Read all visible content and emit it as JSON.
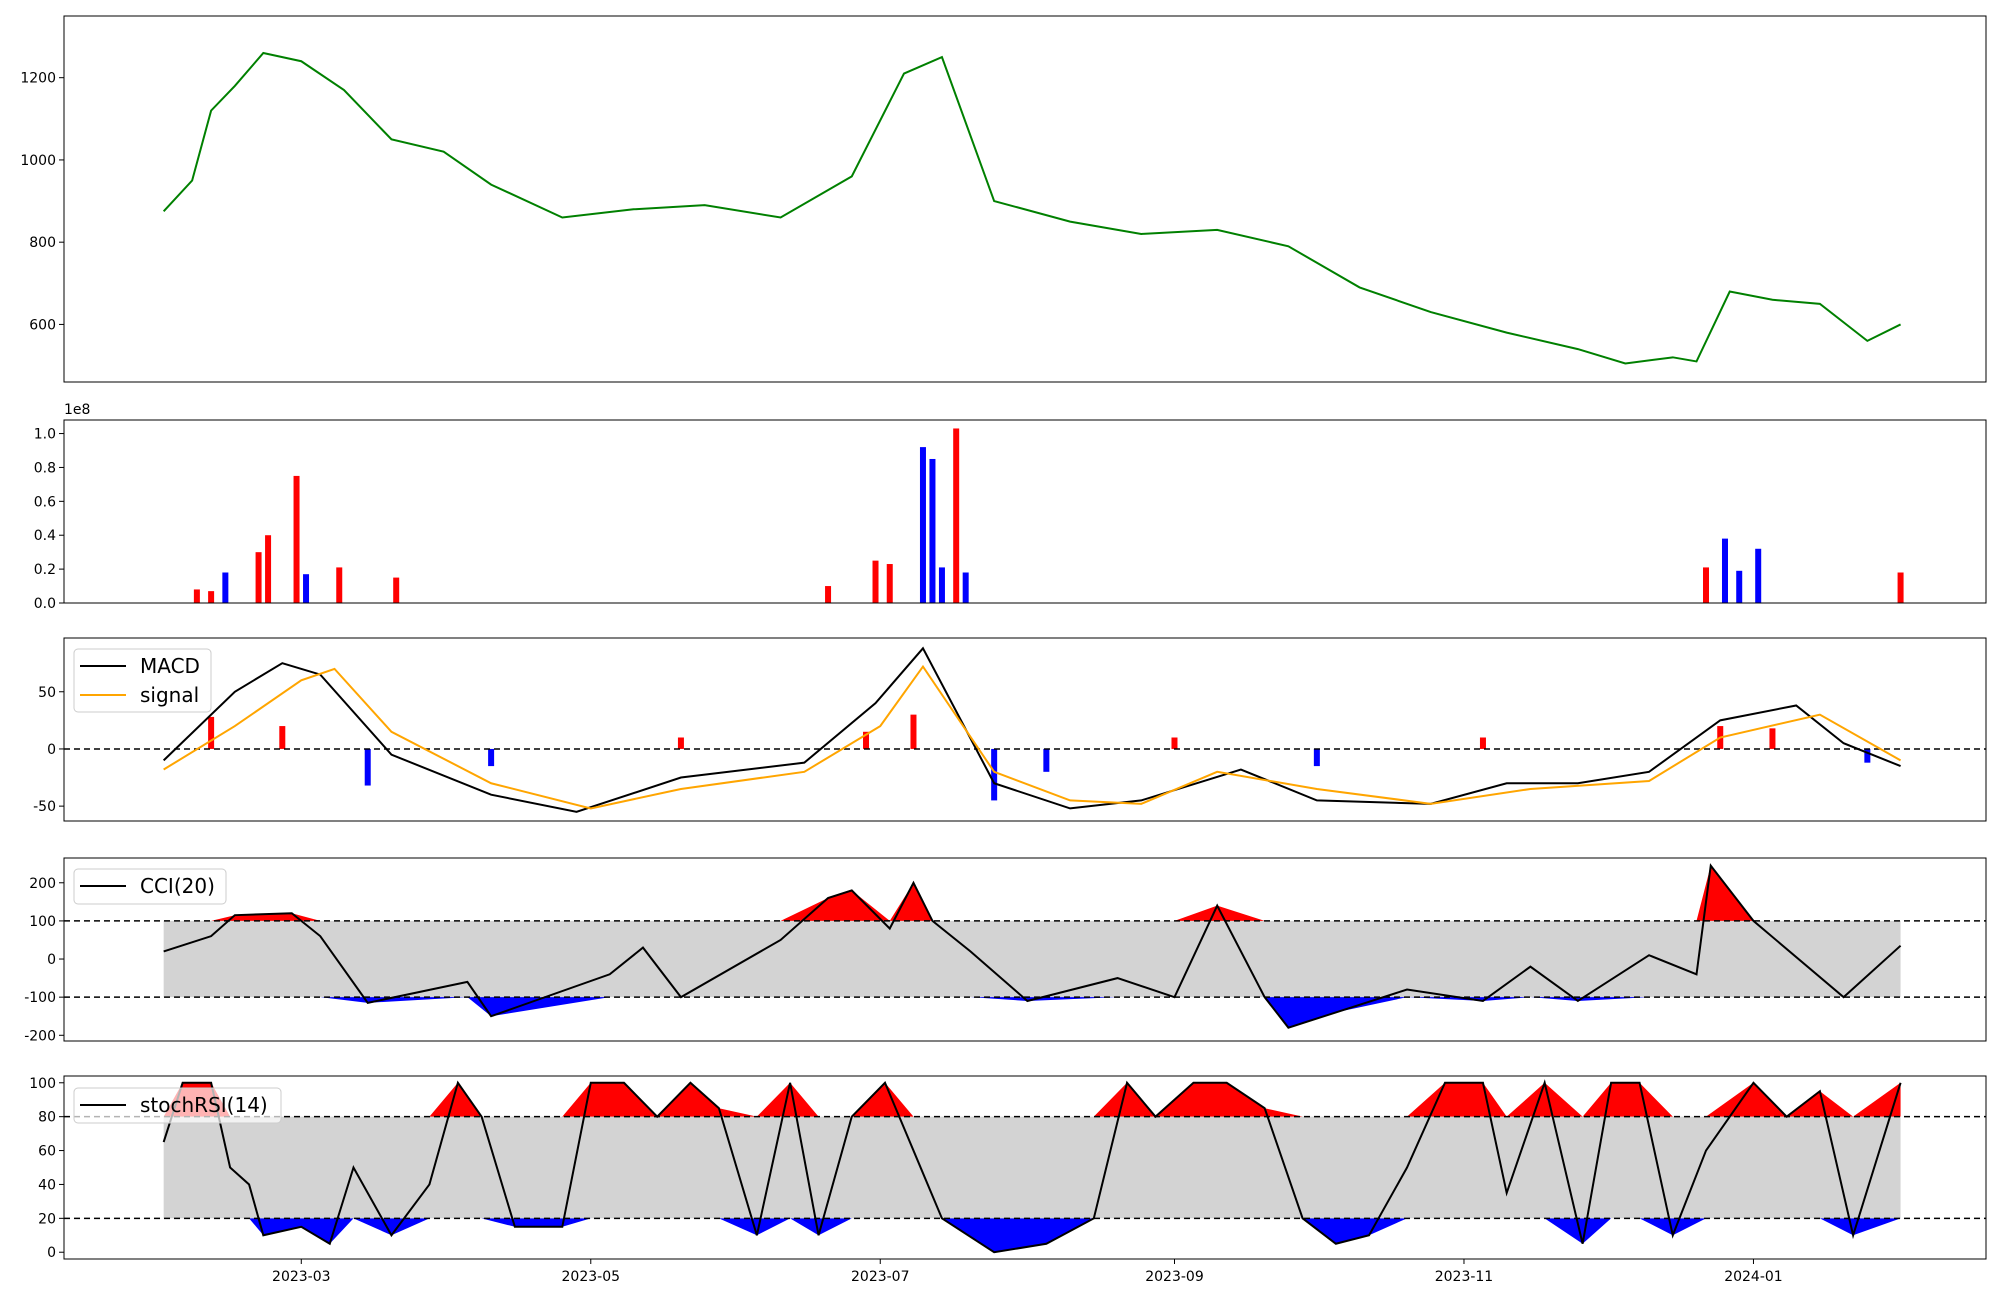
{
  "x_ticks": [
    "2023-03",
    "2023-05",
    "2023-07",
    "2023-09",
    "2023-11",
    "2024-01"
  ],
  "colors": {
    "price": "#008000",
    "up": "#ff0000",
    "down": "#0000ff",
    "macd": "#000000",
    "signal": "#ffa500",
    "band": "#d3d3d3",
    "axes": "#000000"
  },
  "chart_data": [
    {
      "type": "line",
      "title": "",
      "ylabel": "",
      "ylim": [
        460,
        1350
      ],
      "yticks": [
        "600",
        "800",
        "1000",
        "1200"
      ],
      "series": [
        {
          "x": [
            "2023-01-31",
            "2023-02-06",
            "2023-02-10",
            "2023-02-15",
            "2023-02-21",
            "2023-03-01",
            "2023-03-10",
            "2023-03-20",
            "2023-03-31",
            "2023-04-10",
            "2023-04-25",
            "2023-05-10",
            "2023-05-25",
            "2023-06-10",
            "2023-06-25",
            "2023-07-06",
            "2023-07-14",
            "2023-07-25",
            "2023-08-10",
            "2023-08-25",
            "2023-09-10",
            "2023-09-25",
            "2023-10-10",
            "2023-10-25",
            "2023-11-10",
            "2023-11-25",
            "2023-12-05",
            "2023-12-15",
            "2023-12-20",
            "2023-12-27",
            "2024-01-05",
            "2024-01-15",
            "2024-01-25",
            "2024-02-01"
          ],
          "values": [
            875,
            950,
            1120,
            1180,
            1260,
            1240,
            1170,
            1050,
            1020,
            940,
            860,
            880,
            890,
            860,
            960,
            1210,
            1250,
            900,
            850,
            820,
            830,
            790,
            690,
            630,
            580,
            540,
            505,
            520,
            510,
            680,
            660,
            650,
            560,
            600
          ]
        }
      ]
    },
    {
      "type": "bar",
      "title": "",
      "ylabel": "",
      "ylim": [
        0,
        1.08
      ],
      "yticks": [
        "0.0",
        "0.2",
        "0.4",
        "0.6",
        "0.8",
        "1.0"
      ],
      "scale_label": "1e8",
      "bars": [
        {
          "x": "2023-02-07",
          "value": 0.08,
          "dir": "up"
        },
        {
          "x": "2023-02-10",
          "value": 0.07,
          "dir": "up"
        },
        {
          "x": "2023-02-13",
          "value": 0.18,
          "dir": "down"
        },
        {
          "x": "2023-02-20",
          "value": 0.3,
          "dir": "up"
        },
        {
          "x": "2023-02-22",
          "value": 0.4,
          "dir": "up"
        },
        {
          "x": "2023-02-28",
          "value": 0.75,
          "dir": "up"
        },
        {
          "x": "2023-03-02",
          "value": 0.17,
          "dir": "down"
        },
        {
          "x": "2023-03-09",
          "value": 0.21,
          "dir": "up"
        },
        {
          "x": "2023-03-21",
          "value": 0.15,
          "dir": "up"
        },
        {
          "x": "2023-06-20",
          "value": 0.1,
          "dir": "up"
        },
        {
          "x": "2023-06-30",
          "value": 0.25,
          "dir": "up"
        },
        {
          "x": "2023-07-03",
          "value": 0.23,
          "dir": "up"
        },
        {
          "x": "2023-07-10",
          "value": 0.92,
          "dir": "down"
        },
        {
          "x": "2023-07-12",
          "value": 0.85,
          "dir": "down"
        },
        {
          "x": "2023-07-14",
          "value": 0.21,
          "dir": "down"
        },
        {
          "x": "2023-07-17",
          "value": 1.03,
          "dir": "up"
        },
        {
          "x": "2023-07-19",
          "value": 0.18,
          "dir": "down"
        },
        {
          "x": "2023-12-22",
          "value": 0.21,
          "dir": "up"
        },
        {
          "x": "2023-12-26",
          "value": 0.38,
          "dir": "down"
        },
        {
          "x": "2023-12-29",
          "value": 0.19,
          "dir": "down"
        },
        {
          "x": "2024-01-02",
          "value": 0.32,
          "dir": "down"
        },
        {
          "x": "2024-02-01",
          "value": 0.18,
          "dir": "up"
        }
      ]
    },
    {
      "type": "line",
      "title": "",
      "ylim": [
        -63,
        97
      ],
      "yticks": [
        "-50",
        "0",
        "50"
      ],
      "zero_line": 0,
      "legend": [
        "MACD",
        "signal"
      ],
      "series": [
        {
          "name": "MACD",
          "x": [
            "2023-01-31",
            "2023-02-15",
            "2023-02-25",
            "2023-03-05",
            "2023-03-20",
            "2023-04-10",
            "2023-04-28",
            "2023-05-20",
            "2023-06-15",
            "2023-06-30",
            "2023-07-10",
            "2023-07-25",
            "2023-08-10",
            "2023-08-25",
            "2023-09-15",
            "2023-10-01",
            "2023-10-25",
            "2023-11-10",
            "2023-11-25",
            "2023-12-10",
            "2023-12-25",
            "2024-01-10",
            "2024-01-20",
            "2024-02-01"
          ],
          "values": [
            -10,
            50,
            75,
            65,
            -5,
            -40,
            -55,
            -25,
            -12,
            40,
            88,
            -30,
            -52,
            -45,
            -18,
            -45,
            -48,
            -30,
            -30,
            -20,
            25,
            38,
            5,
            -15
          ]
        },
        {
          "name": "signal",
          "x": [
            "2023-01-31",
            "2023-02-15",
            "2023-03-01",
            "2023-03-08",
            "2023-03-20",
            "2023-04-10",
            "2023-05-01",
            "2023-05-20",
            "2023-06-15",
            "2023-07-01",
            "2023-07-10",
            "2023-07-25",
            "2023-08-10",
            "2023-08-25",
            "2023-09-10",
            "2023-10-01",
            "2023-10-25",
            "2023-11-15",
            "2023-12-10",
            "2023-12-25",
            "2024-01-15",
            "2024-02-01"
          ],
          "values": [
            -18,
            20,
            60,
            70,
            15,
            -30,
            -52,
            -35,
            -20,
            20,
            72,
            -20,
            -45,
            -48,
            -20,
            -35,
            -48,
            -35,
            -28,
            10,
            30,
            -10
          ]
        }
      ],
      "histogram": [
        {
          "x": "2023-02-10",
          "value": 28
        },
        {
          "x": "2023-02-25",
          "value": 20
        },
        {
          "x": "2023-03-15",
          "value": -32
        },
        {
          "x": "2023-04-10",
          "value": -15
        },
        {
          "x": "2023-05-20",
          "value": 10
        },
        {
          "x": "2023-06-28",
          "value": 15
        },
        {
          "x": "2023-07-08",
          "value": 30
        },
        {
          "x": "2023-07-25",
          "value": -45
        },
        {
          "x": "2023-08-05",
          "value": -20
        },
        {
          "x": "2023-09-01",
          "value": 10
        },
        {
          "x": "2023-10-01",
          "value": -15
        },
        {
          "x": "2023-11-05",
          "value": 10
        },
        {
          "x": "2023-12-25",
          "value": 20
        },
        {
          "x": "2024-01-05",
          "value": 18
        },
        {
          "x": "2024-01-25",
          "value": -12
        }
      ]
    },
    {
      "type": "line",
      "title": "",
      "ylim": [
        -215,
        265
      ],
      "yticks": [
        "-200",
        "-100",
        "0",
        "100",
        "200"
      ],
      "thresholds": [
        -100,
        100
      ],
      "legend": [
        "CCI(20)"
      ],
      "series": [
        {
          "name": "CCI(20)",
          "x": [
            "2023-01-31",
            "2023-02-10",
            "2023-02-15",
            "2023-02-27",
            "2023-03-05",
            "2023-03-15",
            "2023-04-05",
            "2023-04-10",
            "2023-05-05",
            "2023-05-12",
            "2023-05-20",
            "2023-06-10",
            "2023-06-20",
            "2023-06-25",
            "2023-07-03",
            "2023-07-08",
            "2023-07-12",
            "2023-07-20",
            "2023-08-01",
            "2023-08-20",
            "2023-09-01",
            "2023-09-10",
            "2023-09-20",
            "2023-09-25",
            "2023-10-05",
            "2023-10-20",
            "2023-11-05",
            "2023-11-15",
            "2023-11-25",
            "2023-12-10",
            "2023-12-20",
            "2023-12-23",
            "2024-01-01",
            "2024-01-20",
            "2024-02-01"
          ],
          "values": [
            20,
            60,
            115,
            120,
            60,
            -115,
            -60,
            -150,
            -40,
            30,
            -100,
            50,
            160,
            180,
            80,
            200,
            100,
            20,
            -110,
            -50,
            -100,
            140,
            -100,
            -180,
            -140,
            -80,
            -110,
            -20,
            -110,
            10,
            -40,
            245,
            100,
            -100,
            35
          ]
        }
      ]
    },
    {
      "type": "line",
      "title": "",
      "ylim": [
        -4,
        104
      ],
      "yticks": [
        "0",
        "20",
        "40",
        "60",
        "80",
        "100"
      ],
      "thresholds": [
        20,
        80
      ],
      "legend": [
        "stochRSI(14)"
      ],
      "series": [
        {
          "name": "stochRSI(14)",
          "x": [
            "2023-01-31",
            "2023-02-04",
            "2023-02-10",
            "2023-02-14",
            "2023-02-18",
            "2023-02-21",
            "2023-03-01",
            "2023-03-07",
            "2023-03-12",
            "2023-03-20",
            "2023-03-28",
            "2023-04-03",
            "2023-04-08",
            "2023-04-15",
            "2023-04-25",
            "2023-05-01",
            "2023-05-08",
            "2023-05-15",
            "2023-05-22",
            "2023-05-28",
            "2023-06-05",
            "2023-06-12",
            "2023-06-18",
            "2023-06-25",
            "2023-07-02",
            "2023-07-08",
            "2023-07-14",
            "2023-07-25",
            "2023-08-05",
            "2023-08-15",
            "2023-08-22",
            "2023-08-28",
            "2023-09-05",
            "2023-09-12",
            "2023-09-20",
            "2023-09-28",
            "2023-10-05",
            "2023-10-12",
            "2023-10-20",
            "2023-10-28",
            "2023-11-05",
            "2023-11-10",
            "2023-11-18",
            "2023-11-26",
            "2023-12-02",
            "2023-12-08",
            "2023-12-15",
            "2023-12-22",
            "2024-01-01",
            "2024-01-08",
            "2024-01-15",
            "2024-01-22",
            "2024-02-01"
          ],
          "values": [
            65,
            100,
            100,
            50,
            40,
            10,
            15,
            5,
            50,
            10,
            40,
            100,
            80,
            15,
            15,
            100,
            100,
            80,
            100,
            85,
            10,
            100,
            10,
            80,
            100,
            60,
            20,
            0,
            5,
            20,
            100,
            80,
            100,
            100,
            85,
            20,
            5,
            10,
            50,
            100,
            100,
            35,
            100,
            5,
            100,
            100,
            10,
            60,
            100,
            80,
            95,
            10,
            100
          ]
        }
      ]
    }
  ]
}
